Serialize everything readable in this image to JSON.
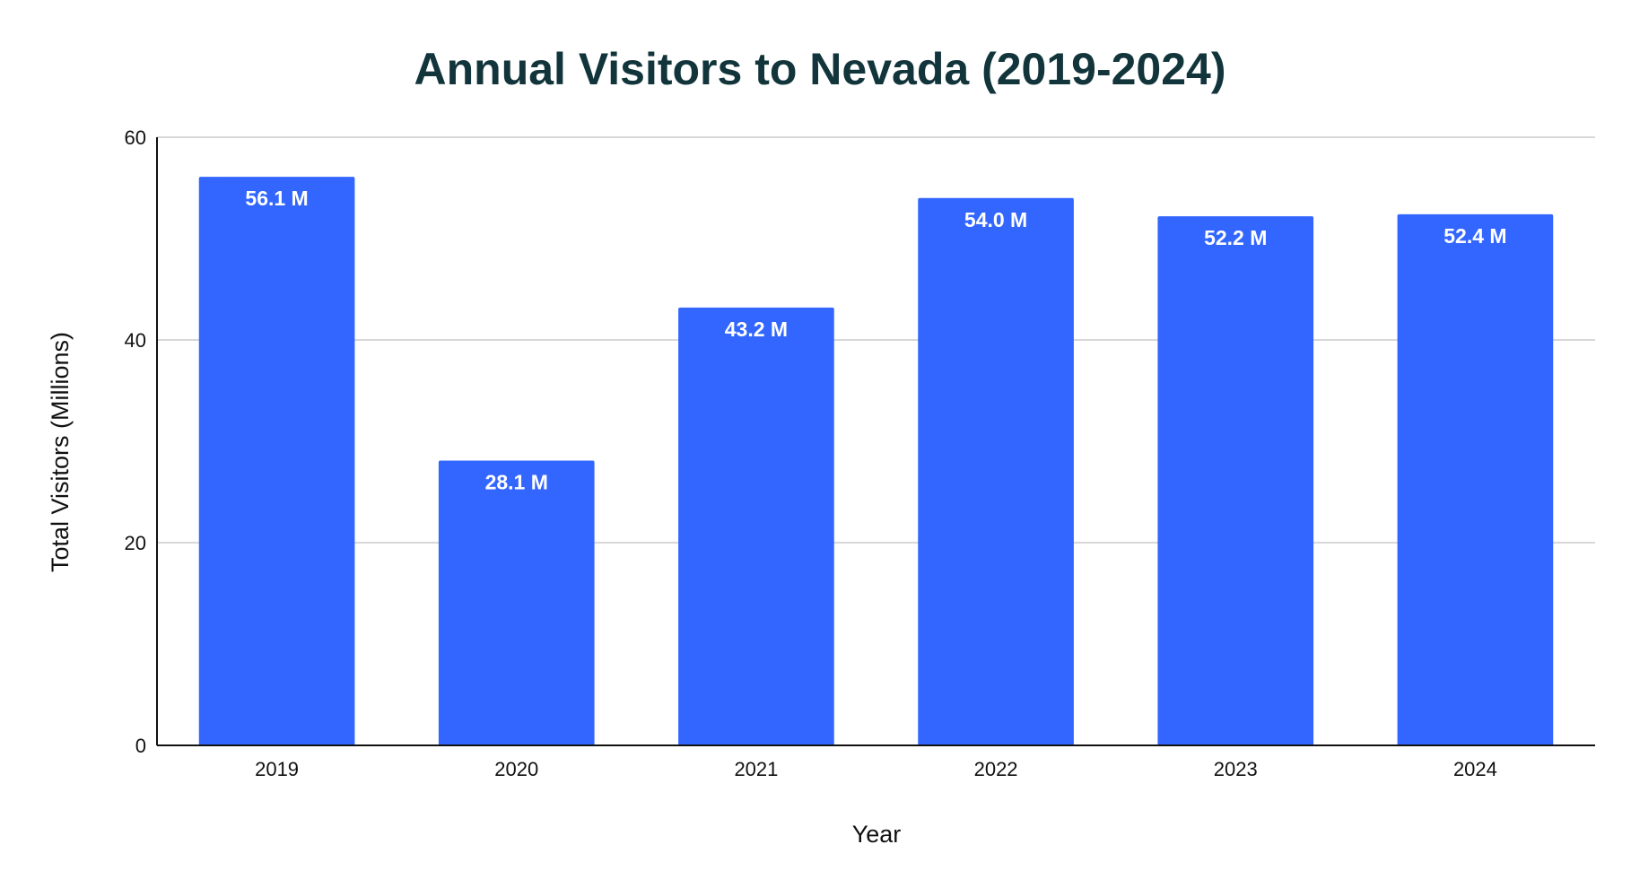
{
  "chart_data": {
    "type": "bar",
    "title": "Annual Visitors to Nevada (2019-2024)",
    "xlabel": "Year",
    "ylabel": "Total Visitors (Millions)",
    "categories": [
      "2019",
      "2020",
      "2021",
      "2022",
      "2023",
      "2024"
    ],
    "values": [
      56.1,
      28.1,
      43.2,
      54.0,
      52.2,
      52.4
    ],
    "data_labels": [
      "56.1 M",
      "28.1 M",
      "43.2 M",
      "54.0 M",
      "52.2 M",
      "52.4 M"
    ],
    "ylim": [
      0,
      60
    ],
    "yticks": [
      0,
      20,
      40,
      60
    ],
    "grid": true,
    "bar_color": "#3366ff",
    "title_color": "#12343b",
    "legend": "none"
  }
}
